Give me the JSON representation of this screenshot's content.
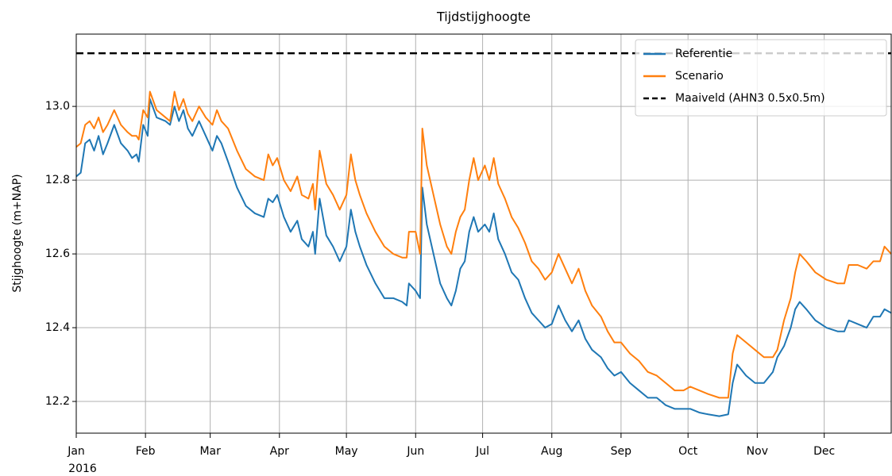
{
  "chart_data": {
    "type": "line",
    "title": "Tijdstijghoogte",
    "ylabel": "Stijghoogte (m+NAP)",
    "year_label": "2016",
    "x": [
      0,
      2,
      4,
      6,
      8,
      10,
      12,
      14,
      17,
      20,
      23,
      25,
      27,
      28,
      30,
      32,
      33,
      36,
      40,
      42,
      44,
      46,
      48,
      50,
      52,
      55,
      58,
      61,
      63,
      65,
      68,
      72,
      76,
      80,
      84,
      86,
      88,
      90,
      93,
      96,
      99,
      101,
      104,
      106,
      107,
      109,
      112,
      115,
      118,
      121,
      123,
      125,
      127,
      130,
      134,
      138,
      142,
      146,
      148,
      149,
      152,
      154,
      155,
      157,
      160,
      163,
      166,
      168,
      170,
      172,
      174,
      176,
      178,
      180,
      183,
      185,
      187,
      189,
      192,
      195,
      198,
      201,
      204,
      207,
      210,
      213,
      216,
      219,
      222,
      225,
      228,
      231,
      235,
      238,
      241,
      244,
      248,
      252,
      256,
      260,
      264,
      268,
      272,
      275,
      279,
      283,
      288,
      292,
      294,
      296,
      300,
      304,
      308,
      312,
      314,
      317,
      320,
      322,
      324,
      327,
      331,
      336,
      341,
      344,
      346,
      350,
      354,
      357,
      360,
      362,
      365
    ],
    "xlim": [
      0,
      365
    ],
    "xticks": [
      {
        "value": 0,
        "label": "Jan"
      },
      {
        "value": 31,
        "label": "Feb"
      },
      {
        "value": 60,
        "label": "Mar"
      },
      {
        "value": 91,
        "label": "Apr"
      },
      {
        "value": 121,
        "label": "May"
      },
      {
        "value": 152,
        "label": "Jun"
      },
      {
        "value": 182,
        "label": "Jul"
      },
      {
        "value": 213,
        "label": "Aug"
      },
      {
        "value": 244,
        "label": "Sep"
      },
      {
        "value": 274,
        "label": "Oct"
      },
      {
        "value": 305,
        "label": "Nov"
      },
      {
        "value": 335,
        "label": "Dec"
      }
    ],
    "ylim": [
      12.114,
      13.196
    ],
    "yticks": [
      12.2,
      12.4,
      12.6,
      12.8,
      {
        "value": 13,
        "label": "13.0"
      }
    ],
    "grid": true,
    "legend": "upper right",
    "series": [
      {
        "name": "Referentie",
        "color": "#1f77b4",
        "values": [
          12.81,
          12.82,
          12.9,
          12.91,
          12.88,
          12.92,
          12.87,
          12.9,
          12.95,
          12.9,
          12.88,
          12.86,
          12.87,
          12.85,
          12.95,
          12.92,
          13.02,
          12.97,
          12.96,
          12.95,
          13.0,
          12.96,
          12.99,
          12.94,
          12.92,
          12.96,
          12.92,
          12.88,
          12.92,
          12.9,
          12.85,
          12.78,
          12.73,
          12.71,
          12.7,
          12.75,
          12.74,
          12.76,
          12.7,
          12.66,
          12.69,
          12.64,
          12.62,
          12.66,
          12.6,
          12.75,
          12.65,
          12.62,
          12.58,
          12.62,
          12.72,
          12.66,
          12.62,
          12.57,
          12.52,
          12.48,
          12.48,
          12.47,
          12.46,
          12.52,
          12.5,
          12.48,
          12.78,
          12.68,
          12.6,
          12.52,
          12.48,
          12.46,
          12.5,
          12.56,
          12.58,
          12.66,
          12.7,
          12.66,
          12.68,
          12.66,
          12.71,
          12.64,
          12.6,
          12.55,
          12.53,
          12.48,
          12.44,
          12.42,
          12.4,
          12.41,
          12.46,
          12.42,
          12.39,
          12.42,
          12.37,
          12.34,
          12.32,
          12.29,
          12.27,
          12.28,
          12.25,
          12.23,
          12.21,
          12.21,
          12.19,
          12.18,
          12.18,
          12.18,
          12.17,
          12.165,
          12.16,
          12.165,
          12.25,
          12.3,
          12.27,
          12.25,
          12.25,
          12.28,
          12.32,
          12.35,
          12.4,
          12.45,
          12.47,
          12.45,
          12.42,
          12.4,
          12.39,
          12.39,
          12.42,
          12.41,
          12.4,
          12.43,
          12.43,
          12.45,
          12.44
        ]
      },
      {
        "name": "Scenario",
        "color": "#ff7f0e",
        "values": [
          12.89,
          12.9,
          12.95,
          12.96,
          12.94,
          12.97,
          12.93,
          12.95,
          12.99,
          12.95,
          12.93,
          12.92,
          12.92,
          12.91,
          12.99,
          12.97,
          13.04,
          12.99,
          12.97,
          12.96,
          13.04,
          12.99,
          13.02,
          12.98,
          12.96,
          13.0,
          12.97,
          12.95,
          12.99,
          12.96,
          12.94,
          12.88,
          12.83,
          12.81,
          12.8,
          12.87,
          12.84,
          12.86,
          12.8,
          12.77,
          12.81,
          12.76,
          12.75,
          12.79,
          12.72,
          12.88,
          12.79,
          12.76,
          12.72,
          12.76,
          12.87,
          12.8,
          12.76,
          12.71,
          12.66,
          12.62,
          12.6,
          12.59,
          12.59,
          12.66,
          12.66,
          12.6,
          12.94,
          12.84,
          12.76,
          12.68,
          12.62,
          12.6,
          12.66,
          12.7,
          12.72,
          12.8,
          12.86,
          12.8,
          12.84,
          12.8,
          12.86,
          12.79,
          12.75,
          12.7,
          12.67,
          12.63,
          12.58,
          12.56,
          12.53,
          12.55,
          12.6,
          12.56,
          12.52,
          12.56,
          12.5,
          12.46,
          12.43,
          12.39,
          12.36,
          12.36,
          12.33,
          12.31,
          12.28,
          12.27,
          12.25,
          12.23,
          12.23,
          12.24,
          12.23,
          12.22,
          12.21,
          12.21,
          12.33,
          12.38,
          12.36,
          12.34,
          12.32,
          12.32,
          12.34,
          12.42,
          12.48,
          12.55,
          12.6,
          12.58,
          12.55,
          12.53,
          12.52,
          12.52,
          12.57,
          12.57,
          12.56,
          12.58,
          12.58,
          12.62,
          12.6
        ]
      }
    ],
    "reference_lines": [
      {
        "name": "Maaiveld (AHN3 0.5x0.5m)",
        "value": 13.144,
        "color": "#000000",
        "style": "dashed"
      }
    ]
  }
}
